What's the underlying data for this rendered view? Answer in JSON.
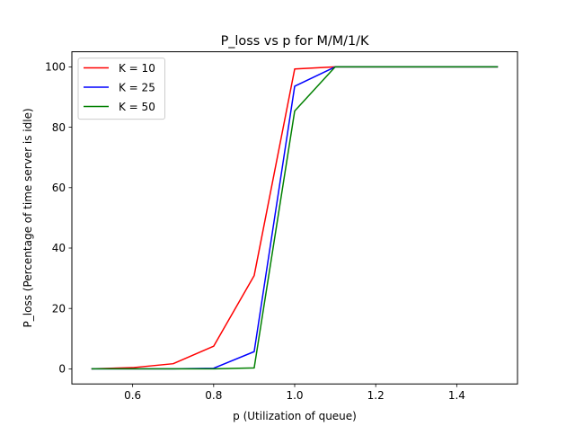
{
  "chart_data": {
    "type": "line",
    "title": "P_loss vs p for M/M/1/K",
    "xlabel": "p (Utilization of queue)",
    "ylabel": "P_loss (Percentage of time server is idle)",
    "xlim": [
      0.45,
      1.55
    ],
    "ylim": [
      -5,
      105
    ],
    "xticks": [
      0.6,
      0.8,
      1.0,
      1.2,
      1.4
    ],
    "xtick_labels": [
      "0.6",
      "0.8",
      "1.0",
      "1.2",
      "1.4"
    ],
    "yticks": [
      0,
      20,
      40,
      60,
      80,
      100
    ],
    "ytick_labels": [
      "0",
      "20",
      "40",
      "60",
      "80",
      "100"
    ],
    "grid": false,
    "legend_position": "upper-left",
    "x": [
      0.5,
      0.6,
      0.7,
      0.8,
      0.9,
      1.0,
      1.1,
      1.2,
      1.3,
      1.4,
      1.5
    ],
    "series": [
      {
        "name": "K = 10",
        "color": "#ff0000",
        "values": [
          0.0,
          0.4,
          1.7,
          7.5,
          30.9,
          99.3,
          100,
          100,
          100,
          100,
          100
        ]
      },
      {
        "name": "K = 25",
        "color": "#0000ff",
        "values": [
          0.0,
          0.0,
          0.0,
          0.2,
          5.7,
          93.6,
          100,
          100,
          100,
          100,
          100
        ]
      },
      {
        "name": "K = 50",
        "color": "#008000",
        "values": [
          0.0,
          0.0,
          0.0,
          0.0,
          0.3,
          85.4,
          100,
          100,
          100,
          100,
          100
        ]
      }
    ]
  }
}
